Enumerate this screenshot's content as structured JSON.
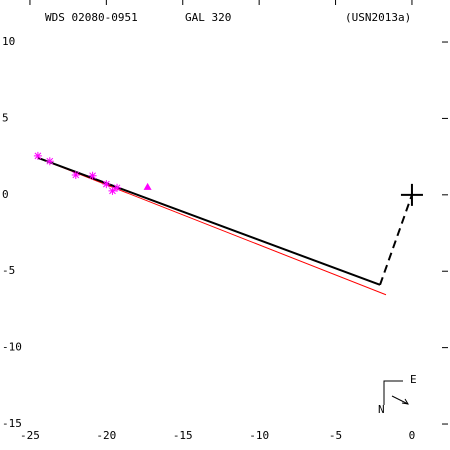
{
  "chart_data": {
    "type": "orbit",
    "title": "WDS 02080-0951",
    "subtitle": "GAL 320",
    "reference": "(USN2013a)",
    "xlim": [
      -26.96,
      2.49
    ],
    "ylim": [
      -16.7,
      12.75
    ],
    "xticks": [
      -25,
      -20,
      -15,
      -10,
      -5,
      0
    ],
    "yticks": [
      10,
      5,
      0,
      -5,
      -10,
      -15
    ],
    "series": [
      {
        "color": "#ff0000",
        "style": "solid",
        "x": [
          -24.48,
          -1.7
        ],
        "y": [
          2.42,
          -6.54
        ]
      },
      {
        "color": "#000000",
        "style": "solid",
        "x": [
          -24.48,
          -2.09
        ],
        "y": [
          2.42,
          -5.89
        ]
      },
      {
        "color": "#000000",
        "style": "dashed",
        "x": [
          -2.09,
          0
        ],
        "y": [
          -5.89,
          0
        ]
      },
      {
        "color": "#ff00ff",
        "marker": "asterisk",
        "x": [
          -24.48,
          -23.7,
          -22.0,
          -20.9,
          -20.0,
          -19.6,
          -19.3
        ],
        "y": [
          2.55,
          2.2,
          1.3,
          1.25,
          0.7,
          0.26,
          0.46
        ]
      },
      {
        "color": "#ff00ff",
        "marker": "triangle",
        "x": [
          -17.3
        ],
        "y": [
          0.52
        ]
      },
      {
        "color": "#000000",
        "marker": "plus",
        "x": [
          0
        ],
        "y": [
          0
        ]
      }
    ],
    "compass": {
      "east": "E",
      "north": "N"
    }
  }
}
